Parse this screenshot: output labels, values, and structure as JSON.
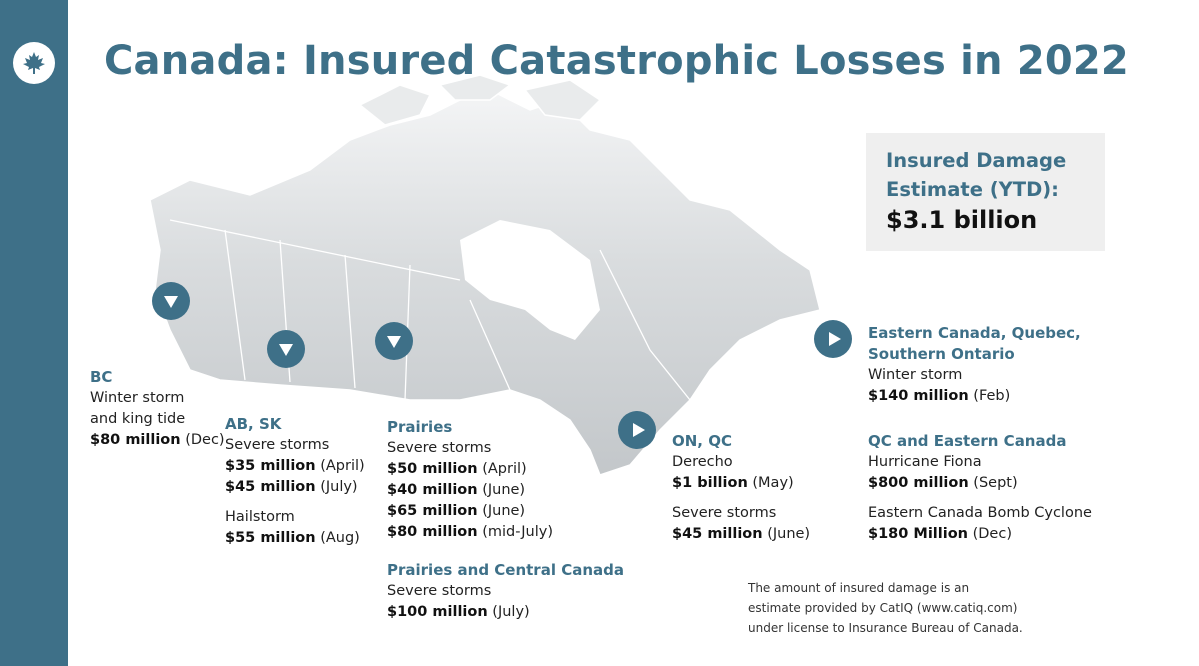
{
  "title": "Canada: Insured Catastrophic Losses in 2022",
  "estimate": {
    "label": "Insured Damage Estimate (YTD):",
    "value": "$3.1 billion"
  },
  "regions": {
    "bc": {
      "heading": "BC",
      "lines": [
        {
          "pre": "Winter storm",
          "amt": "",
          "post": ""
        },
        {
          "pre": "and king tide",
          "amt": "",
          "post": ""
        },
        {
          "pre": "",
          "amt": "$80 million",
          "post": " (Dec)"
        }
      ]
    },
    "absk": {
      "heading": "AB, SK",
      "lines": [
        {
          "pre": "Severe storms",
          "amt": "",
          "post": ""
        },
        {
          "pre": "",
          "amt": "$35 million",
          "post": " (April)"
        },
        {
          "pre": "",
          "amt": "$45 million",
          "post": " (July)"
        }
      ],
      "lines2": [
        {
          "pre": "Hailstorm",
          "amt": "",
          "post": ""
        },
        {
          "pre": "",
          "amt": "$55 million",
          "post": " (Aug)"
        }
      ]
    },
    "prairies": {
      "heading": "Prairies",
      "lines": [
        {
          "pre": "Severe storms",
          "amt": "",
          "post": ""
        },
        {
          "pre": "",
          "amt": "$50 million",
          "post": " (April)"
        },
        {
          "pre": "",
          "amt": "$40 million",
          "post": " (June)"
        },
        {
          "pre": "",
          "amt": "$65 million",
          "post": " (June)"
        },
        {
          "pre": "",
          "amt": "$80 million",
          "post": " (mid-July)"
        }
      ]
    },
    "central": {
      "heading": "Prairies and Central Canada",
      "lines": [
        {
          "pre": "Severe storms",
          "amt": "",
          "post": ""
        },
        {
          "pre": "",
          "amt": "$100 million",
          "post": " (July)"
        }
      ]
    },
    "onqc": {
      "heading": "ON, QC",
      "lines": [
        {
          "pre": "Derecho",
          "amt": "",
          "post": ""
        },
        {
          "pre": "",
          "amt": "$1 billion",
          "post": " (May)"
        }
      ],
      "lines2": [
        {
          "pre": "Severe storms",
          "amt": "",
          "post": ""
        },
        {
          "pre": "",
          "amt": "$45 million",
          "post": " (June)"
        }
      ]
    },
    "eastern": {
      "heading": "Eastern Canada, Quebec, Southern Ontario",
      "lines": [
        {
          "pre": "Winter storm",
          "amt": "",
          "post": ""
        },
        {
          "pre": "",
          "amt": "$140 million",
          "post": " (Feb)"
        }
      ]
    },
    "qceast": {
      "heading": "QC and Eastern Canada",
      "lines": [
        {
          "pre": "Hurricane Fiona",
          "amt": "",
          "post": ""
        },
        {
          "pre": "",
          "amt": "$800 million",
          "post": " (Sept)"
        }
      ],
      "lines2": [
        {
          "pre": "Eastern Canada Bomb Cyclone",
          "amt": "",
          "post": ""
        },
        {
          "pre": "",
          "amt": "$180 Million",
          "post": " (Dec)"
        }
      ]
    }
  },
  "note": [
    "The amount of insured damage is an",
    "estimate provided by CatIQ (www.catiq.com)",
    "under license to Insurance Bureau of Canada."
  ],
  "colors": {
    "brand": "#3e7088",
    "map": "#cfd3d6",
    "panel": "#efefef"
  },
  "icons": {
    "logo": "maple-leaf-icon",
    "marker_down": "down-triangle-icon",
    "marker_right": "right-triangle-icon"
  }
}
